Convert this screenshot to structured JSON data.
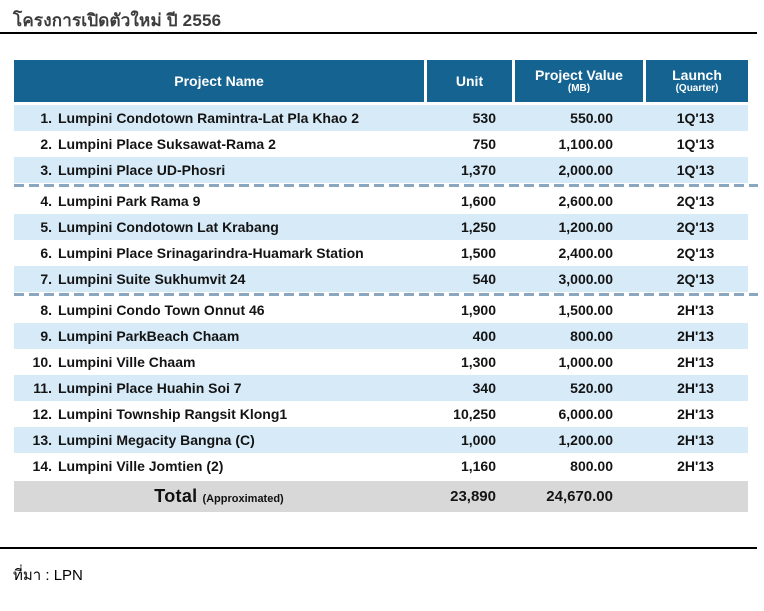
{
  "title": "โครงการเปิดตัวใหม่ ปี 2556",
  "source": "ที่มา : LPN",
  "colors": {
    "header_bg": "#156391",
    "alt_row_bg": "#d6eaf8",
    "total_row_bg": "#d8d8d8",
    "dashed_separator": "#8ba6bf",
    "rule": "#000000",
    "header_text": "#ffffff"
  },
  "table": {
    "headers": {
      "project_name": "Project Name",
      "unit": "Unit",
      "project_value": "Project Value",
      "project_value_sub": "(MB)",
      "launch": "Launch",
      "launch_sub": "(Quarter)"
    },
    "rows": [
      {
        "num": "1.",
        "name": "Lumpini Condotown Ramintra-Lat Pla Khao 2",
        "unit": "530",
        "value": "550.00",
        "launch": "1Q'13"
      },
      {
        "num": "2.",
        "name": "Lumpini Place Suksawat-Rama 2",
        "unit": "750",
        "value": "1,100.00",
        "launch": "1Q'13"
      },
      {
        "num": "3.",
        "name": "Lumpini Place UD-Phosri",
        "unit": "1,370",
        "value": "2,000.00",
        "launch": "1Q'13"
      },
      {
        "num": "4.",
        "name": "Lumpini Park Rama 9",
        "unit": "1,600",
        "value": "2,600.00",
        "launch": "2Q'13"
      },
      {
        "num": "5.",
        "name": "Lumpini Condotown Lat Krabang",
        "unit": "1,250",
        "value": "1,200.00",
        "launch": "2Q'13"
      },
      {
        "num": "6.",
        "name": "Lumpini Place Srinagarindra-Huamark Station",
        "unit": "1,500",
        "value": "2,400.00",
        "launch": "2Q'13"
      },
      {
        "num": "7.",
        "name": "Lumpini Suite Sukhumvit 24",
        "unit": "540",
        "value": "3,000.00",
        "launch": "2Q'13"
      },
      {
        "num": "8.",
        "name": "Lumpini Condo Town Onnut 46",
        "unit": "1,900",
        "value": "1,500.00",
        "launch": "2H'13"
      },
      {
        "num": "9.",
        "name": "Lumpini ParkBeach Chaam",
        "unit": "400",
        "value": "800.00",
        "launch": "2H'13"
      },
      {
        "num": "10.",
        "name": "Lumpini Ville Chaam",
        "unit": "1,300",
        "value": "1,000.00",
        "launch": "2H'13"
      },
      {
        "num": "11.",
        "name": "Lumpini Place Huahin Soi 7",
        "unit": "340",
        "value": "520.00",
        "launch": "2H'13"
      },
      {
        "num": "12.",
        "name": "Lumpini Township Rangsit Klong1",
        "unit": "10,250",
        "value": "6,000.00",
        "launch": "2H'13"
      },
      {
        "num": "13.",
        "name": "Lumpini Megacity Bangna (C)",
        "unit": "1,000",
        "value": "1,200.00",
        "launch": "2H'13"
      },
      {
        "num": "14.",
        "name": "Lumpini Ville Jomtien (2)",
        "unit": "1,160",
        "value": "800.00",
        "launch": "2H'13"
      }
    ],
    "separators_after": [
      3,
      7
    ],
    "total": {
      "label": "Total",
      "sublabel": "(Approximated)",
      "unit": "23,890",
      "value": "24,670.00",
      "launch": ""
    }
  }
}
